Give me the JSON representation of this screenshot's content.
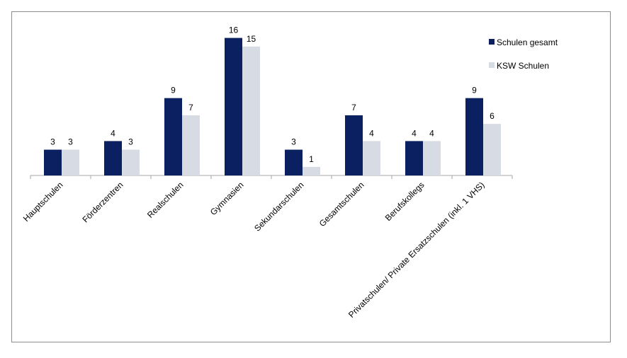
{
  "chart_data": {
    "type": "bar",
    "categories": [
      "Hauptschulen",
      "Förderzentren",
      "Realschulen",
      "Gymnasien",
      "Sekundarschulen",
      "Gesamtschulen",
      "Berufskollegs",
      "Privatschulen/ Private Ersatzschulen (inkl. 1 VHS)"
    ],
    "series": [
      {
        "name": "Schulen gesamt",
        "values": [
          3,
          4,
          9,
          16,
          3,
          7,
          4,
          9
        ],
        "color": "#0b2060"
      },
      {
        "name": "KSW Schulen",
        "values": [
          3,
          3,
          7,
          15,
          1,
          4,
          4,
          6
        ],
        "color": "#d6dbe4"
      }
    ],
    "ylim": [
      0,
      17
    ],
    "grid": false,
    "legend_position": "right",
    "axis_color": "#a6a6a6",
    "frame_color": "#8c8c8c",
    "title": "",
    "xlabel": "",
    "ylabel": ""
  }
}
